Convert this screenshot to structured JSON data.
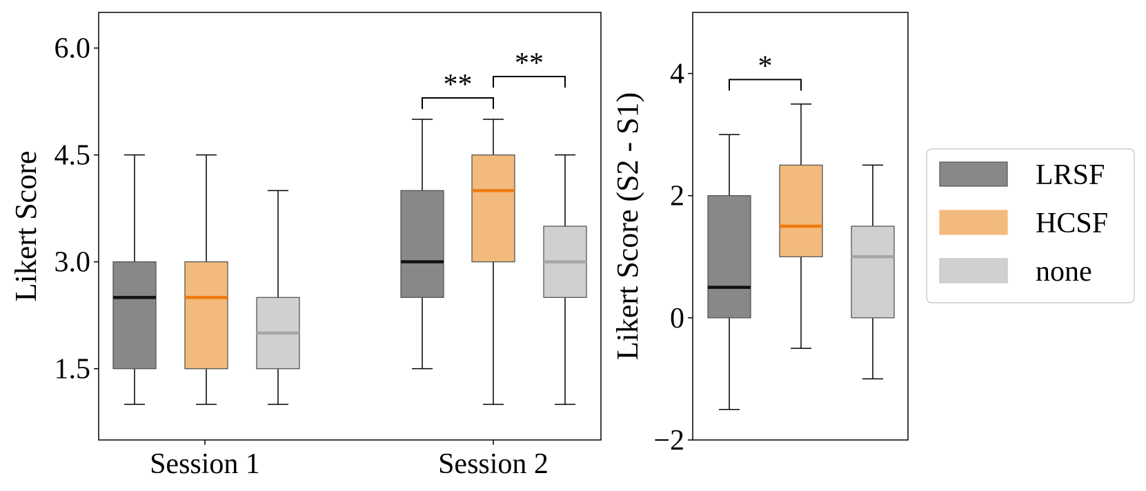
{
  "chart_data": [
    {
      "type": "box",
      "ylabel": "Likert Score",
      "ylim": [
        0.5,
        6.5
      ],
      "yticks": [
        "1.5",
        "3.0",
        "4.5",
        "6.0"
      ],
      "ytick_values": [
        1.5,
        3.0,
        4.5,
        6.0
      ],
      "categories": [
        "Session 1",
        "Session 2"
      ],
      "series": [
        {
          "name": "LRSF",
          "boxes": [
            {
              "whislo": 1.0,
              "q1": 1.5,
              "med": 2.5,
              "q3": 3.0,
              "whishi": 4.5
            },
            {
              "whislo": 1.5,
              "q1": 2.5,
              "med": 3.0,
              "q3": 4.0,
              "whishi": 5.0
            }
          ]
        },
        {
          "name": "HCSF",
          "boxes": [
            {
              "whislo": 1.0,
              "q1": 1.5,
              "med": 2.5,
              "q3": 3.0,
              "whishi": 4.5
            },
            {
              "whislo": 1.0,
              "q1": 3.0,
              "med": 4.0,
              "q3": 4.5,
              "whishi": 5.0
            }
          ]
        },
        {
          "name": "none",
          "boxes": [
            {
              "whislo": 1.0,
              "q1": 1.5,
              "med": 2.0,
              "q3": 2.5,
              "whishi": 4.0
            },
            {
              "whislo": 1.0,
              "q1": 2.5,
              "med": 3.0,
              "q3": 3.5,
              "whishi": 4.5
            }
          ]
        }
      ],
      "significance": [
        {
          "category": "Session 2",
          "from": "LRSF",
          "to": "HCSF",
          "label": "**",
          "level": 5.3
        },
        {
          "category": "Session 2",
          "from": "HCSF",
          "to": "none",
          "label": "**",
          "level": 5.6
        }
      ]
    },
    {
      "type": "box",
      "ylabel": "Likert Score (S2 - S1)",
      "ylim": [
        -2,
        5
      ],
      "yticks": [
        "−2",
        "0",
        "2",
        "4"
      ],
      "ytick_values": [
        -2,
        0,
        2,
        4
      ],
      "series": [
        {
          "name": "LRSF",
          "boxes": [
            {
              "whislo": -1.5,
              "q1": 0.0,
              "med": 0.5,
              "q3": 2.0,
              "whishi": 3.0
            }
          ]
        },
        {
          "name": "HCSF",
          "boxes": [
            {
              "whislo": -0.5,
              "q1": 1.0,
              "med": 1.5,
              "q3": 2.5,
              "whishi": 3.5
            }
          ]
        },
        {
          "name": "none",
          "boxes": [
            {
              "whislo": -1.0,
              "q1": 0.0,
              "med": 1.0,
              "q3": 1.5,
              "whishi": 2.5
            }
          ]
        }
      ],
      "significance": [
        {
          "from": "LRSF",
          "to": "HCSF",
          "label": "*",
          "level": 3.9
        }
      ]
    }
  ],
  "legend": {
    "placement": "right",
    "entries": [
      {
        "label": "LRSF",
        "fill": "#888888",
        "median": "#111111"
      },
      {
        "label": "HCSF",
        "fill": "#f2ba7c",
        "median": "#ee7a10"
      },
      {
        "label": "none",
        "fill": "#d0d0d0",
        "median": "#a6a6a6"
      }
    ]
  }
}
